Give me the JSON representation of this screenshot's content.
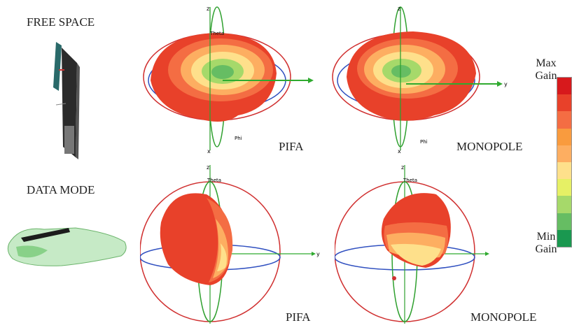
{
  "rows": [
    {
      "condition": "FREE SPACE",
      "left_label": "PIFA",
      "right_label": "MONOPOLE"
    },
    {
      "condition": "DATA MODE",
      "left_label": "PIFA",
      "right_label": "MONOPOLE"
    }
  ],
  "axes": {
    "z": "z",
    "x": "x",
    "y": "y",
    "theta": "Theta",
    "phi": "Phi"
  },
  "scale": {
    "max": "Max Gain",
    "min": "Min Gain",
    "colors": [
      "#d7191c",
      "#e8412a",
      "#f46d43",
      "#f99b3e",
      "#fdae61",
      "#fee08b",
      "#e6f065",
      "#a6d96a",
      "#66bd63",
      "#1a9850"
    ]
  },
  "colors": {
    "ring_red": "#d03030",
    "ring_blue": "#3050c0",
    "ring_green": "#2fa02f",
    "axis_green": "#2faa2f"
  }
}
